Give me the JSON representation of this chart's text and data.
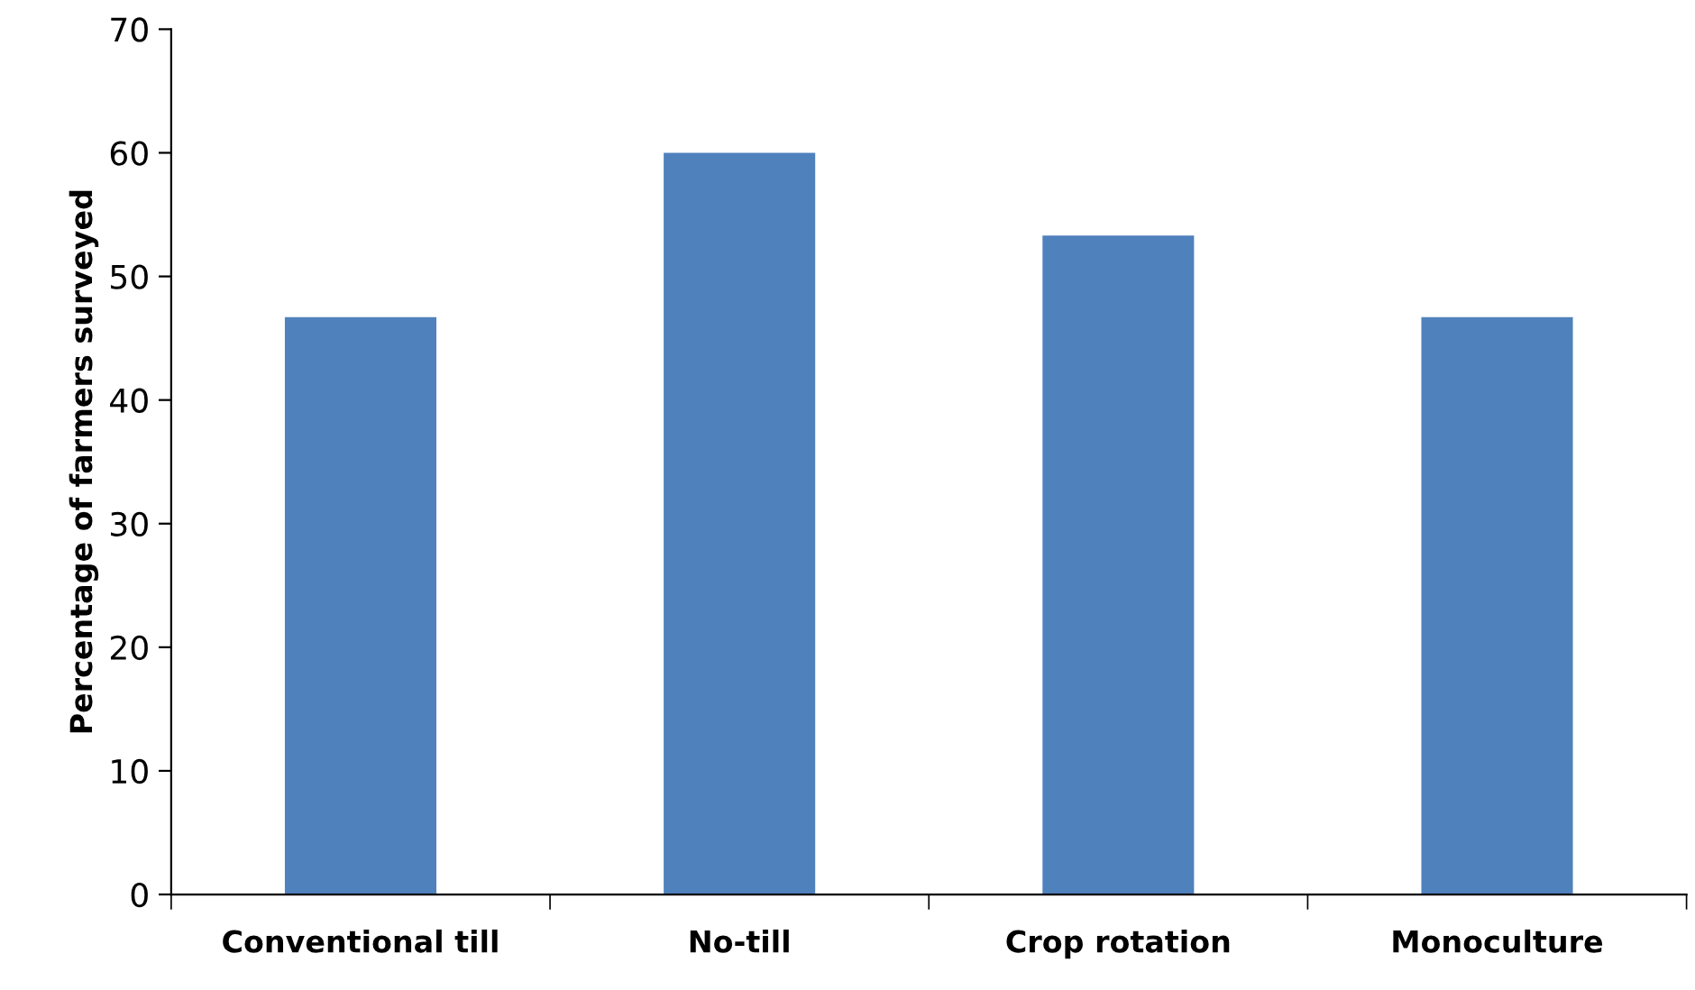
{
  "chart_data": {
    "type": "bar",
    "ylabel": "Percentage of farmers surveyed",
    "categories": [
      "Conventional till",
      "No-till",
      "Crop rotation",
      "Monoculture"
    ],
    "values": [
      46.7,
      60,
      53.3,
      46.7
    ],
    "color": "#4f81bd",
    "ylim": [
      0,
      70
    ],
    "yticks": [
      0,
      10,
      20,
      30,
      40,
      50,
      60,
      70
    ],
    "grid": false,
    "legend": false
  }
}
